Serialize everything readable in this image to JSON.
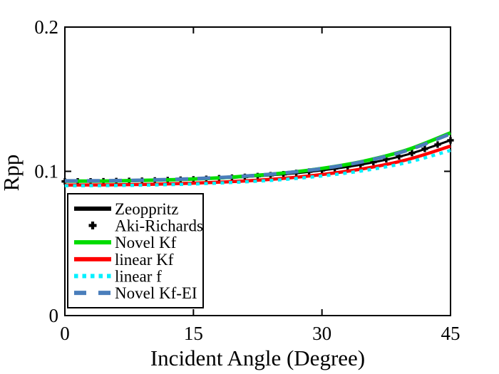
{
  "chart_data": {
    "type": "line",
    "title": "",
    "xlabel": "Incident Angle (Degree)",
    "ylabel": "Rpp",
    "xlim": [
      0,
      45
    ],
    "ylim": [
      0,
      0.2
    ],
    "xticks": [
      0,
      15,
      30,
      45
    ],
    "yticks": [
      0,
      0.1,
      0.2
    ],
    "xtick_labels": [
      "0",
      "15",
      "30",
      "45"
    ],
    "ytick_labels": [
      "0",
      "0.1",
      "0.2"
    ],
    "grid": false,
    "legend_position": "lower-left",
    "background_color": "#ffffff",
    "axis_color": "#000000",
    "x": [
      0,
      5,
      10,
      15,
      20,
      25,
      30,
      35,
      40,
      45
    ],
    "series": [
      {
        "name": "Zeoppritz",
        "color": "#000000",
        "style": "solid",
        "width": 3,
        "values": [
          0.093,
          0.0931,
          0.0936,
          0.0944,
          0.0957,
          0.0977,
          0.1007,
          0.1051,
          0.1117,
          0.1215
        ]
      },
      {
        "name": "Aki-Richards",
        "color": "#000000",
        "style": "markers",
        "marker": "plus",
        "marker_step_deg": 1.5,
        "width": 3,
        "values": [
          0.093,
          0.0931,
          0.0936,
          0.0944,
          0.0957,
          0.0977,
          0.1007,
          0.1051,
          0.1117,
          0.1215
        ]
      },
      {
        "name": "Novel Kf",
        "color": "#00DC00",
        "style": "solid",
        "width": 5,
        "values": [
          0.0932,
          0.0933,
          0.0938,
          0.0947,
          0.0962,
          0.0985,
          0.102,
          0.1072,
          0.115,
          0.1267
        ]
      },
      {
        "name": "linear Kf",
        "color": "#FF0000",
        "style": "solid",
        "width": 4.5,
        "values": [
          0.0905,
          0.0906,
          0.091,
          0.0918,
          0.093,
          0.0949,
          0.0978,
          0.102,
          0.1082,
          0.1175
        ]
      },
      {
        "name": "linear f",
        "color": "#00F0FF",
        "style": "dotted",
        "width": 4.5,
        "values": [
          0.09,
          0.0901,
          0.0905,
          0.0912,
          0.0924,
          0.0941,
          0.0968,
          0.1006,
          0.1062,
          0.1145
        ]
      },
      {
        "name": "Novel Kf-EI",
        "color": "#4A7EBB",
        "style": "dashed",
        "width": 5,
        "values": [
          0.0934,
          0.0935,
          0.094,
          0.0949,
          0.0963,
          0.0985,
          0.1019,
          0.107,
          0.1146,
          0.126
        ]
      }
    ]
  }
}
